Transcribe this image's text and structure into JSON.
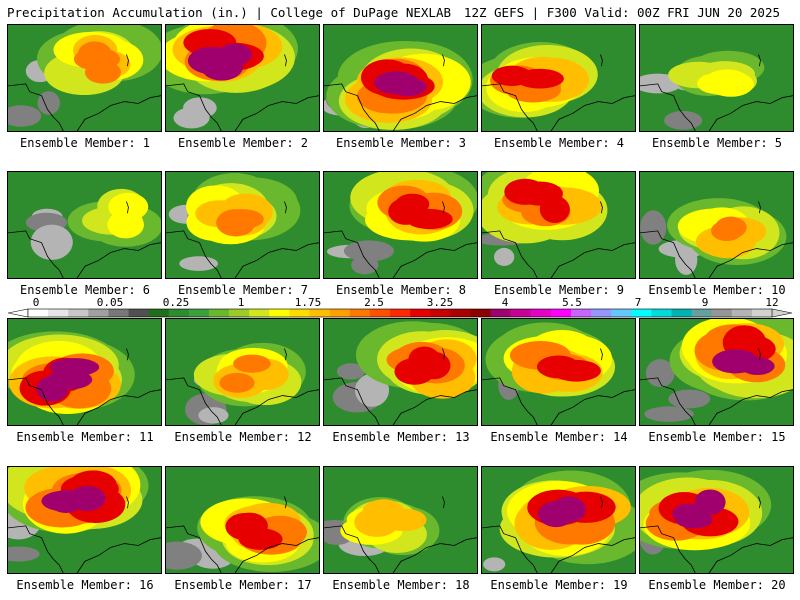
{
  "header": {
    "title": "Precipitation Accumulation (in.) | College of DuPage NEXLAB",
    "run_info": "12Z GEFS | F300 Valid: 00Z FRI JUN 20 2025"
  },
  "panels": [
    {
      "label": "Ensemble Member: 1",
      "max_level": 8
    },
    {
      "label": "Ensemble Member: 2",
      "max_level": 10
    },
    {
      "label": "Ensemble Member: 3",
      "max_level": 10
    },
    {
      "label": "Ensemble Member: 4",
      "max_level": 9
    },
    {
      "label": "Ensemble Member: 5",
      "max_level": 6
    },
    {
      "label": "Ensemble Member: 6",
      "max_level": 6
    },
    {
      "label": "Ensemble Member: 7",
      "max_level": 8
    },
    {
      "label": "Ensemble Member: 8",
      "max_level": 9
    },
    {
      "label": "Ensemble Member: 9",
      "max_level": 9
    },
    {
      "label": "Ensemble Member: 10",
      "max_level": 8
    },
    {
      "label": "Ensemble Member: 11",
      "max_level": 10
    },
    {
      "label": "Ensemble Member: 12",
      "max_level": 8
    },
    {
      "label": "Ensemble Member: 13",
      "max_level": 9
    },
    {
      "label": "Ensemble Member: 14",
      "max_level": 9
    },
    {
      "label": "Ensemble Member: 15",
      "max_level": 10
    },
    {
      "label": "Ensemble Member: 16",
      "max_level": 10
    },
    {
      "label": "Ensemble Member: 17",
      "max_level": 9
    },
    {
      "label": "Ensemble Member: 18",
      "max_level": 7
    },
    {
      "label": "Ensemble Member: 19",
      "max_level": 10
    },
    {
      "label": "Ensemble Member: 20",
      "max_level": 10
    }
  ],
  "colorbar": {
    "labels": [
      "0",
      "0.05",
      "0.25",
      "1",
      "1.75",
      "2.5",
      "3.25",
      "4",
      "5.5",
      "7",
      "9",
      "12"
    ],
    "colors": [
      "#ffffff",
      "#e6e6e6",
      "#c8c8c8",
      "#a0a0a0",
      "#787878",
      "#505050",
      "#1e6e1e",
      "#2e8b2e",
      "#3ca03c",
      "#6ab82e",
      "#9ccc28",
      "#d2e61e",
      "#ffff00",
      "#ffdc00",
      "#ffbe00",
      "#ffa000",
      "#ff7800",
      "#ff5000",
      "#ff2800",
      "#e60000",
      "#c80000",
      "#aa0000",
      "#8c0000",
      "#a0006e",
      "#c80096",
      "#e600c8",
      "#ff00ff",
      "#c864ff",
      "#9696ff",
      "#64c8ff",
      "#00ffff",
      "#00dcdc",
      "#00b4b4",
      "#64a0a0",
      "#969696",
      "#b4b4b4",
      "#d2d2d2"
    ]
  },
  "legend_levels": [
    "#ffffff",
    "#b4b4b4",
    "#808080",
    "#2e8b2e",
    "#6ab82e",
    "#d2e61e",
    "#ffff00",
    "#ffbe00",
    "#ff7800",
    "#e60000",
    "#a0006e",
    "#ff00ff",
    "#00ffff"
  ]
}
